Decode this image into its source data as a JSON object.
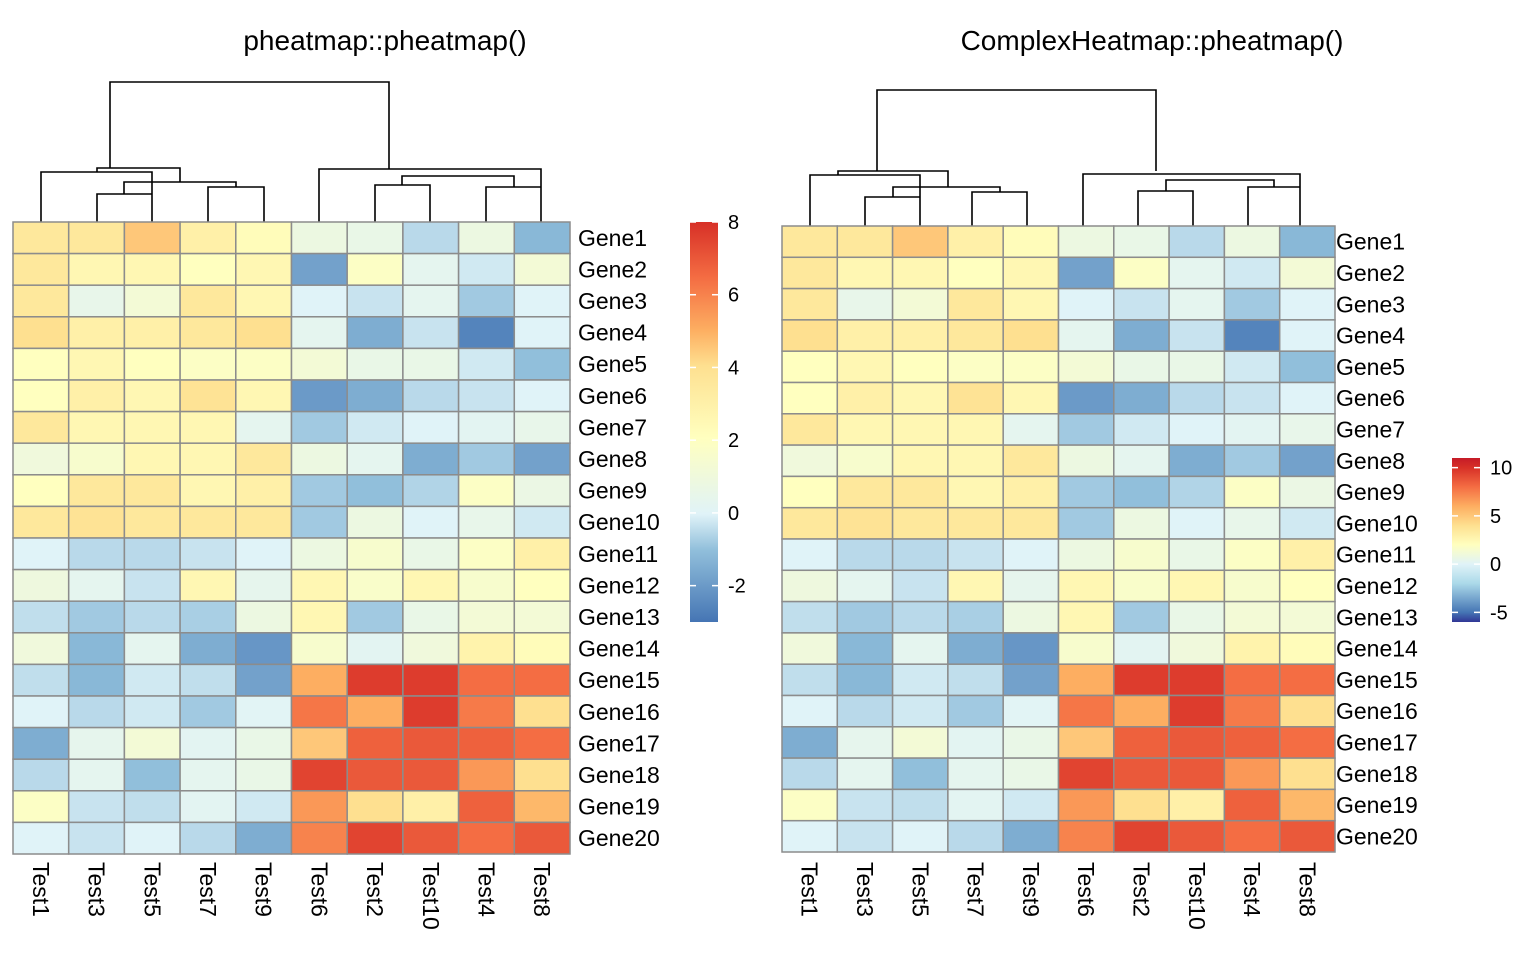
{
  "chart_data": [
    {
      "type": "heatmap",
      "title": "pheatmap::pheatmap()",
      "rows": [
        "Gene1",
        "Gene2",
        "Gene3",
        "Gene4",
        "Gene5",
        "Gene6",
        "Gene7",
        "Gene8",
        "Gene9",
        "Gene10",
        "Gene11",
        "Gene12",
        "Gene13",
        "Gene14",
        "Gene15",
        "Gene16",
        "Gene17",
        "Gene18",
        "Gene19",
        "Gene20"
      ],
      "columns": [
        "Test1",
        "Test3",
        "Test5",
        "Test7",
        "Test9",
        "Test6",
        "Test2",
        "Test10",
        "Test4",
        "Test8"
      ],
      "values": [
        [
          3.5,
          3.5,
          4.5,
          3.0,
          2.2,
          0.8,
          0.6,
          -0.5,
          0.8,
          -1.2
        ],
        [
          3.5,
          2.5,
          2.5,
          2.0,
          2.5,
          -1.8,
          1.8,
          0.3,
          -0.2,
          1.2
        ],
        [
          3.5,
          0.5,
          1.2,
          3.5,
          2.5,
          0.0,
          -0.3,
          0.3,
          -0.8,
          0.0
        ],
        [
          4.0,
          3.0,
          3.0,
          3.5,
          4.0,
          0.3,
          -1.5,
          -0.3,
          -2.6,
          0.0
        ],
        [
          2.0,
          2.5,
          2.0,
          1.8,
          1.8,
          1.2,
          0.6,
          0.6,
          -0.2,
          -1.0
        ],
        [
          2.0,
          3.0,
          2.5,
          3.8,
          2.5,
          -2.0,
          -1.5,
          -0.5,
          -0.3,
          0.0
        ],
        [
          3.5,
          2.5,
          2.5,
          2.5,
          0.3,
          -0.8,
          -0.2,
          0.0,
          0.2,
          0.5
        ],
        [
          1.0,
          1.5,
          2.5,
          2.5,
          3.5,
          0.8,
          0.3,
          -1.5,
          -0.8,
          -1.8
        ],
        [
          2.0,
          3.5,
          3.5,
          2.5,
          3.0,
          -0.8,
          -1.0,
          -0.6,
          1.8,
          0.7
        ],
        [
          3.5,
          3.8,
          3.5,
          3.5,
          3.5,
          -0.8,
          0.8,
          0.0,
          0.5,
          -0.2
        ],
        [
          0.0,
          -0.5,
          -0.5,
          -0.3,
          0.0,
          0.8,
          1.5,
          0.6,
          1.8,
          3.0
        ],
        [
          0.9,
          0.3,
          -0.3,
          2.5,
          0.4,
          2.5,
          1.6,
          2.5,
          1.5,
          2.0
        ],
        [
          -0.4,
          -0.8,
          -0.5,
          -0.7,
          0.8,
          2.5,
          -0.8,
          0.6,
          1.2,
          1.2
        ],
        [
          1.0,
          -1.2,
          0.3,
          -1.5,
          -2.1,
          1.5,
          0.2,
          1.0,
          2.8,
          2.2
        ],
        [
          -0.4,
          -1.2,
          -0.2,
          -0.4,
          -1.8,
          5.0,
          7.7,
          7.7,
          6.5,
          6.5
        ],
        [
          0.0,
          -0.5,
          -0.2,
          -0.8,
          0.1,
          6.3,
          5.0,
          7.7,
          6.2,
          4.0
        ],
        [
          -1.5,
          0.4,
          1.2,
          0.2,
          0.6,
          4.5,
          6.8,
          7.0,
          6.8,
          6.5
        ],
        [
          -0.5,
          0.3,
          -1.0,
          0.3,
          0.6,
          7.5,
          7.0,
          7.0,
          5.5,
          4.0
        ],
        [
          1.8,
          -0.3,
          -0.4,
          0.2,
          -0.2,
          5.5,
          4.0,
          3.0,
          6.8,
          4.8
        ],
        [
          0.0,
          -0.3,
          0.0,
          -0.5,
          -1.5,
          6.0,
          7.5,
          7.0,
          6.5,
          7.0
        ]
      ],
      "colorbar": {
        "ticks": [
          8,
          6,
          4,
          2,
          0,
          -2
        ],
        "range": [
          -3,
          8
        ]
      }
    },
    {
      "type": "heatmap",
      "title": "ComplexHeatmap::pheatmap()",
      "rows": [
        "Gene1",
        "Gene2",
        "Gene3",
        "Gene4",
        "Gene5",
        "Gene6",
        "Gene7",
        "Gene8",
        "Gene9",
        "Gene10",
        "Gene11",
        "Gene12",
        "Gene13",
        "Gene14",
        "Gene15",
        "Gene16",
        "Gene17",
        "Gene18",
        "Gene19",
        "Gene20"
      ],
      "columns": [
        "Test1",
        "Test3",
        "Test5",
        "Test7",
        "Test9",
        "Test6",
        "Test2",
        "Test10",
        "Test4",
        "Test8"
      ],
      "values": "same as previous heatmap",
      "colorbar": {
        "ticks": [
          10,
          5,
          0,
          -5
        ],
        "range": [
          -6,
          11
        ]
      }
    }
  ],
  "colors": {
    "scale": [
      "#313695",
      "#4575b4",
      "#74add1",
      "#abd9e9",
      "#e0f3f8",
      "#ffffbf",
      "#fee090",
      "#fdae61",
      "#f46d43",
      "#d73027",
      "#a50026"
    ],
    "cell_border": "#8c8c8c",
    "dendrogram": "#000000"
  }
}
